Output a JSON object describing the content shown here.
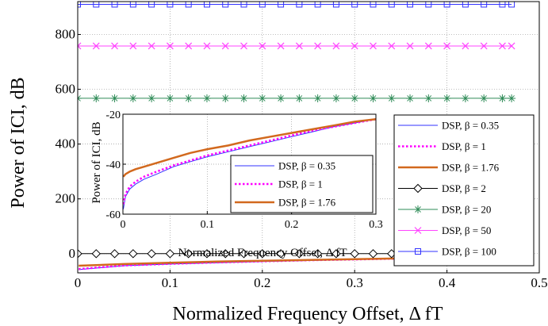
{
  "chart_data": {
    "main": {
      "type": "line",
      "xlabel": "Normalized Frequency Offset, Δ fT",
      "ylabel": "Power of ICI, dB",
      "xlim": [
        0,
        0.5
      ],
      "ylim": [
        -70,
        920
      ],
      "xticks": [
        "0",
        "0.1",
        "0.2",
        "0.3",
        "0.4",
        "0.5"
      ],
      "yticks": [
        "0",
        "200",
        "400",
        "600",
        "800"
      ],
      "grid": true,
      "legend_position": "right",
      "series": [
        {
          "name": "DSP, β = 0.35",
          "color": "#3333ff",
          "style": "solid",
          "width": 1,
          "marker": "none",
          "x": [
            0.001,
            0.05,
            0.1,
            0.15,
            0.2,
            0.25,
            0.3,
            0.35,
            0.4,
            0.47
          ],
          "y": [
            -58,
            -44,
            -38,
            -33,
            -29,
            -25,
            -21,
            -18,
            -15,
            -12
          ]
        },
        {
          "name": "DSP, β = 1",
          "color": "#ff00ff",
          "style": "dotted",
          "width": 2.5,
          "marker": "none",
          "x": [
            0.001,
            0.05,
            0.1,
            0.15,
            0.2,
            0.25,
            0.3,
            0.35,
            0.4,
            0.47
          ],
          "y": [
            -56,
            -43,
            -37,
            -32,
            -28,
            -24,
            -21,
            -18,
            -15,
            -12
          ]
        },
        {
          "name": "DSP, β = 1.76",
          "color": "#d2691e",
          "style": "solid",
          "width": 2.5,
          "marker": "none",
          "x": [
            0.001,
            0.05,
            0.1,
            0.15,
            0.2,
            0.25,
            0.3,
            0.35,
            0.4,
            0.47
          ],
          "y": [
            -44,
            -38,
            -33,
            -29,
            -26,
            -23,
            -20,
            -17,
            -14,
            -11
          ]
        },
        {
          "name": "DSP, β = 2",
          "color": "#000000",
          "style": "solid",
          "width": 1,
          "marker": "diamond",
          "x": [
            0,
            0.02,
            0.04,
            0.06,
            0.08,
            0.1,
            0.12,
            0.14,
            0.16,
            0.18,
            0.2,
            0.22,
            0.24,
            0.26,
            0.28,
            0.3,
            0.32,
            0.34,
            0.36,
            0.38,
            0.4,
            0.42,
            0.44,
            0.46,
            0.47
          ],
          "y": [
            0,
            0,
            0,
            0,
            0,
            0,
            0,
            0,
            0,
            0,
            0,
            0,
            0,
            0,
            0,
            0,
            0,
            0,
            0,
            0,
            0,
            0,
            0,
            0,
            0
          ]
        },
        {
          "name": "DSP, β = 20",
          "color": "#2e8b57",
          "style": "solid",
          "width": 1,
          "marker": "star",
          "x": [
            0,
            0.02,
            0.04,
            0.06,
            0.08,
            0.1,
            0.12,
            0.14,
            0.16,
            0.18,
            0.2,
            0.22,
            0.24,
            0.26,
            0.28,
            0.3,
            0.32,
            0.34,
            0.36,
            0.38,
            0.4,
            0.42,
            0.44,
            0.46,
            0.47
          ],
          "y": [
            567,
            567,
            567,
            567,
            567,
            567,
            567,
            567,
            567,
            567,
            567,
            567,
            567,
            567,
            567,
            567,
            567,
            567,
            567,
            567,
            567,
            567,
            567,
            567,
            567
          ]
        },
        {
          "name": "DSP, β = 50",
          "color": "#ff44ff",
          "style": "solid",
          "width": 1,
          "marker": "x",
          "x": [
            0,
            0.02,
            0.04,
            0.06,
            0.08,
            0.1,
            0.12,
            0.14,
            0.16,
            0.18,
            0.2,
            0.22,
            0.24,
            0.26,
            0.28,
            0.3,
            0.32,
            0.34,
            0.36,
            0.38,
            0.4,
            0.42,
            0.44,
            0.46,
            0.47
          ],
          "y": [
            758,
            758,
            758,
            758,
            758,
            758,
            758,
            758,
            758,
            758,
            758,
            758,
            758,
            758,
            758,
            758,
            758,
            758,
            758,
            758,
            758,
            758,
            758,
            758,
            758
          ]
        },
        {
          "name": "DSP, β = 100",
          "color": "#3333ff",
          "style": "solid",
          "width": 1,
          "marker": "square",
          "x": [
            0,
            0.02,
            0.04,
            0.06,
            0.08,
            0.1,
            0.12,
            0.14,
            0.16,
            0.18,
            0.2,
            0.22,
            0.24,
            0.26,
            0.28,
            0.3,
            0.32,
            0.34,
            0.36,
            0.38,
            0.4,
            0.42,
            0.44,
            0.46,
            0.47
          ],
          "y": [
            910,
            910,
            910,
            910,
            910,
            910,
            910,
            910,
            910,
            910,
            910,
            910,
            910,
            910,
            910,
            910,
            910,
            910,
            910,
            910,
            910,
            910,
            910,
            910,
            910
          ]
        }
      ]
    },
    "inset": {
      "type": "line",
      "xlabel": "Normalized Frequency Offset, Δ fT",
      "ylabel": "Power of ICI, dB",
      "xlim": [
        0,
        0.3
      ],
      "ylim": [
        -60,
        -20
      ],
      "xticks": [
        "0",
        "0.1",
        "0.2",
        "0.3"
      ],
      "yticks": [
        "-60",
        "-40",
        "-20"
      ],
      "grid": true,
      "legend_position": "bottom-right",
      "series": [
        {
          "name": "DSP, β = 0.35",
          "color": "#3333ff",
          "style": "solid",
          "width": 1,
          "x": [
            0.0005,
            0.003,
            0.008,
            0.015,
            0.025,
            0.04,
            0.06,
            0.08,
            0.1,
            0.125,
            0.15,
            0.175,
            0.2,
            0.225,
            0.25,
            0.275,
            0.3
          ],
          "y": [
            -58,
            -53,
            -50,
            -48,
            -46,
            -44,
            -41,
            -39,
            -37,
            -35,
            -33,
            -31,
            -29,
            -27,
            -25,
            -23.5,
            -22
          ]
        },
        {
          "name": "DSP, β = 1",
          "color": "#ff00ff",
          "style": "dotted",
          "width": 2.5,
          "x": [
            0.0005,
            0.003,
            0.008,
            0.015,
            0.025,
            0.04,
            0.06,
            0.08,
            0.1,
            0.125,
            0.15,
            0.175,
            0.2,
            0.225,
            0.25,
            0.275,
            0.3
          ],
          "y": [
            -56,
            -52,
            -49,
            -47,
            -45,
            -43,
            -40.5,
            -38.5,
            -36.5,
            -34.5,
            -32.5,
            -30.5,
            -28.5,
            -26.5,
            -25,
            -23.5,
            -22
          ]
        },
        {
          "name": "DSP, β = 1.76",
          "color": "#d2691e",
          "style": "solid",
          "width": 2.5,
          "x": [
            0.0005,
            0.003,
            0.008,
            0.015,
            0.025,
            0.04,
            0.06,
            0.08,
            0.1,
            0.125,
            0.15,
            0.175,
            0.2,
            0.225,
            0.25,
            0.275,
            0.3
          ],
          "y": [
            -45,
            -44,
            -43,
            -42,
            -41,
            -39.5,
            -37.5,
            -35.5,
            -34,
            -32.5,
            -30.5,
            -29,
            -27.5,
            -26,
            -24.5,
            -23,
            -22
          ]
        }
      ]
    }
  }
}
